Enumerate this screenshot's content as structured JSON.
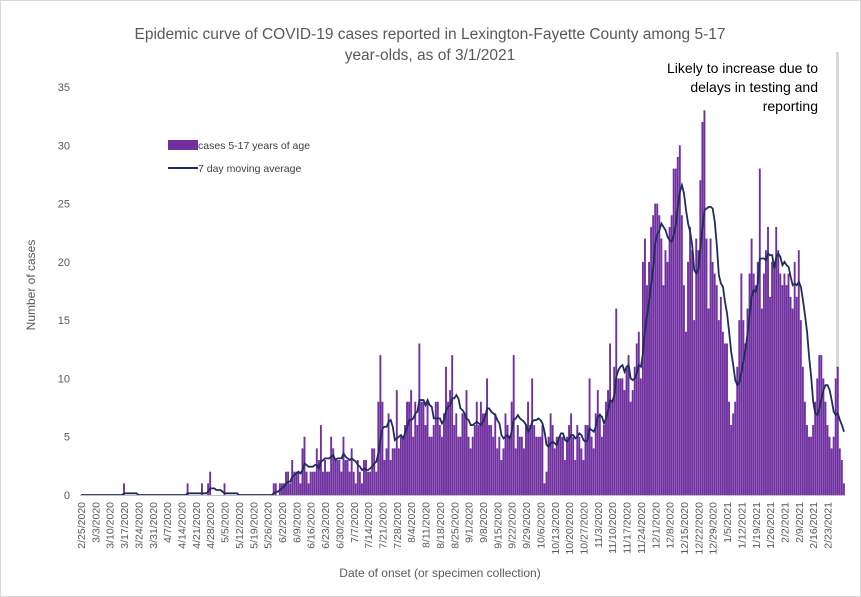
{
  "chart_data": {
    "type": "bar",
    "title_line1": "Epidemic curve of COVID-19 cases reported in Lexington-Fayette County among 5-17",
    "title_line2": "year-olds, as of 3/1/2021",
    "ylabel": "Number of cases",
    "xlabel": "Date of onset (or specimen collection)",
    "ylim": [
      0,
      35
    ],
    "yticks": [
      0,
      5,
      10,
      15,
      20,
      25,
      30,
      35
    ],
    "start_date": "2/25/2020",
    "tick_labels": [
      "2/25/2020",
      "3/3/2020",
      "3/10/2020",
      "3/17/2020",
      "3/24/2020",
      "3/31/2020",
      "4/7/2020",
      "4/14/2020",
      "4/21/2020",
      "4/28/2020",
      "5/5/2020",
      "5/12/2020",
      "5/19/2020",
      "5/26/2020",
      "6/2/2020",
      "6/9/2020",
      "6/16/2020",
      "6/23/2020",
      "6/30/2020",
      "7/7/2020",
      "7/14/2020",
      "7/21/2020",
      "7/28/2020",
      "8/4/2020",
      "8/11/2020",
      "8/18/2020",
      "8/25/2020",
      "9/1/2020",
      "9/8/2020",
      "9/15/2020",
      "9/22/2020",
      "9/29/2020",
      "10/6/2020",
      "10/13/2020",
      "10/20/2020",
      "10/27/2020",
      "11/3/2020",
      "11/10/2020",
      "11/17/2020",
      "11/24/2020",
      "12/1/2020",
      "12/8/2020",
      "12/15/2020",
      "12/22/2020",
      "12/29/2020",
      "1/5/2021",
      "1/12/2021",
      "1/19/2021",
      "1/26/2021",
      "2/2/2021",
      "2/9/2021",
      "2/16/2021",
      "2/23/2021"
    ],
    "series": [
      {
        "name": "cases 5-17 years of age",
        "type": "bar",
        "color": "#7030a0",
        "values": [
          0,
          0,
          0,
          0,
          0,
          0,
          0,
          0,
          0,
          0,
          0,
          0,
          0,
          0,
          0,
          0,
          0,
          0,
          0,
          0,
          0,
          1,
          0,
          0,
          0,
          0,
          0,
          0,
          0,
          0,
          0,
          0,
          0,
          0,
          0,
          0,
          0,
          0,
          0,
          0,
          0,
          0,
          0,
          0,
          0,
          0,
          0,
          0,
          0,
          0,
          0,
          0,
          1,
          0,
          0,
          0,
          0,
          0,
          0,
          1,
          0,
          0,
          1,
          2,
          0,
          0,
          0,
          0,
          0,
          0,
          1,
          0,
          0,
          0,
          0,
          0,
          0,
          0,
          0,
          0,
          0,
          0,
          0,
          0,
          0,
          0,
          0,
          0,
          0,
          0,
          0,
          0,
          0,
          0,
          1,
          1,
          0,
          1,
          1,
          1,
          2,
          2,
          1,
          3,
          2,
          2,
          2,
          1,
          4,
          5,
          2,
          1,
          2,
          2,
          2,
          4,
          3,
          6,
          2,
          3,
          2,
          2,
          5,
          4,
          3,
          3,
          3,
          2,
          5,
          3,
          3,
          2,
          4,
          2,
          1,
          3,
          2,
          1,
          3,
          3,
          2,
          2,
          4,
          4,
          2,
          8,
          12,
          8,
          3,
          4,
          7,
          3,
          4,
          4,
          9,
          4,
          5,
          5,
          6,
          8,
          8,
          9,
          5,
          8,
          6,
          13,
          8,
          8,
          6,
          8,
          5,
          5,
          6,
          8,
          8,
          6,
          5,
          7,
          11,
          8,
          9,
          12,
          6,
          7,
          5,
          5,
          7,
          7,
          9,
          5,
          4,
          5,
          6,
          8,
          6,
          8,
          7,
          7,
          10,
          6,
          6,
          5,
          7,
          4,
          5,
          3,
          4,
          7,
          6,
          5,
          8,
          12,
          4,
          6,
          5,
          5,
          4,
          6,
          8,
          6,
          10,
          6,
          5,
          5,
          5,
          6,
          1,
          2,
          5,
          7,
          6,
          4,
          5,
          5,
          5,
          5,
          3,
          5,
          6,
          7,
          5,
          3,
          6,
          5,
          4,
          3,
          6,
          6,
          10,
          5,
          4,
          7,
          9,
          7,
          5,
          6,
          8,
          9,
          13,
          8,
          11,
          16,
          10,
          10,
          10,
          9,
          11,
          12,
          8,
          9,
          11,
          13,
          14,
          10,
          20,
          22,
          18,
          20,
          23,
          24,
          25,
          25,
          24,
          22,
          18,
          21,
          20,
          23,
          24,
          28,
          28,
          29,
          30,
          24,
          18,
          14,
          20,
          23,
          21,
          15,
          22,
          21,
          27,
          32,
          33,
          22,
          16,
          22,
          20,
          19,
          18,
          15,
          17,
          14,
          13,
          13,
          8,
          6,
          7,
          8,
          11,
          15,
          19,
          15,
          13,
          16,
          19,
          22,
          19,
          18,
          20,
          28,
          16,
          19,
          21,
          23,
          17,
          20,
          20,
          23,
          21,
          19,
          18,
          19,
          18,
          19,
          17,
          16,
          20,
          17,
          21,
          15,
          11,
          8,
          6,
          5,
          5,
          6,
          8,
          10,
          12,
          12,
          10,
          8,
          6,
          5,
          4,
          5,
          10,
          11,
          4,
          3,
          1
        ]
      },
      {
        "name": "7 day moving average",
        "type": "line",
        "color": "#1f2d5c"
      }
    ],
    "annotation": "Likely to increase due to delays in testing and reporting",
    "shaded_days": 3,
    "legend_position": "upper-left",
    "grid": false
  }
}
